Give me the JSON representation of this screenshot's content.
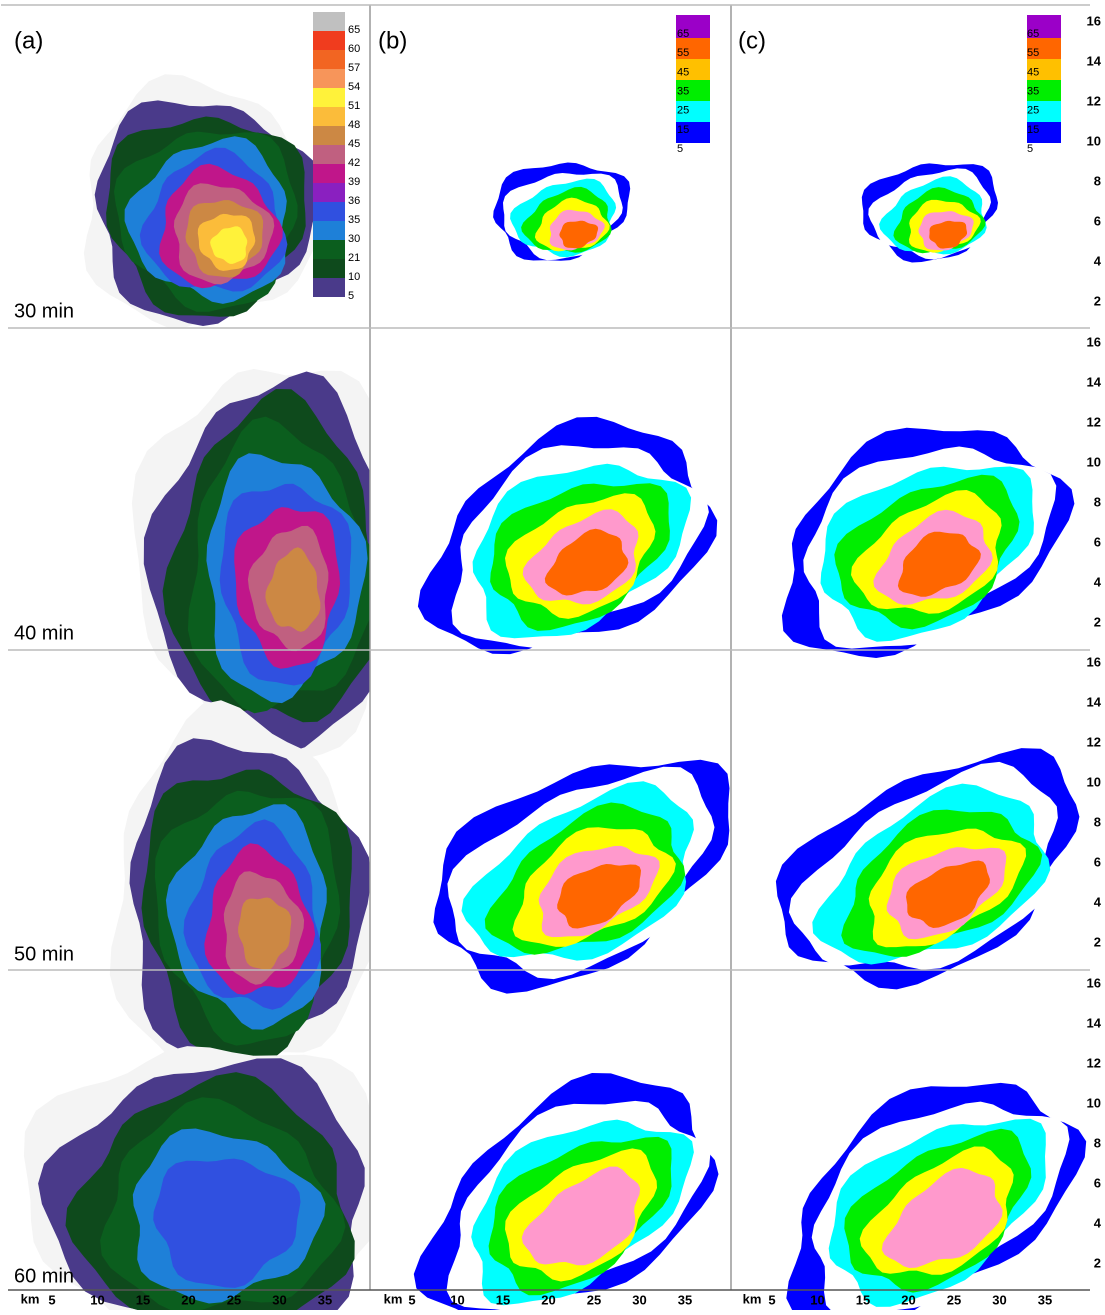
{
  "panels": [
    {
      "label": "(a)"
    },
    {
      "label": "(b)"
    },
    {
      "label": "(c)"
    }
  ],
  "rows": [
    {
      "label": "30 min"
    },
    {
      "label": "40 min"
    },
    {
      "label": "50 min"
    },
    {
      "label": "60 min"
    }
  ],
  "colorbar_a": {
    "labels": [
      "65",
      "60",
      "57",
      "54",
      "51",
      "48",
      "45",
      "42",
      "39",
      "36",
      "35",
      "30",
      "21",
      "10",
      "5"
    ],
    "colors": [
      "#c0c0c0",
      "#f03c1e",
      "#f26522",
      "#f7955a",
      "#fff23a",
      "#fbbc3a",
      "#cc8844",
      "#c06080",
      "#c0168a",
      "#8a20c0",
      "#3050e0",
      "#1e80d8",
      "#0b5e1e",
      "#0e4a1c",
      "#4a3a8a"
    ]
  },
  "colorbar_model": {
    "labels": [
      "65",
      "55",
      "45",
      "35",
      "25",
      "15",
      "5"
    ],
    "colors": [
      "#9b00c8",
      "#ff6600",
      "#ffc000",
      "#00ee00",
      "#00ffff",
      "#0000ff"
    ]
  },
  "height_axis": {
    "ticks": [
      "16",
      "14",
      "12",
      "10",
      "8",
      "6",
      "4",
      "2"
    ]
  },
  "distance_axis": {
    "unit": "km",
    "ticks": [
      "5",
      "10",
      "15",
      "20",
      "25",
      "30",
      "35"
    ]
  }
}
